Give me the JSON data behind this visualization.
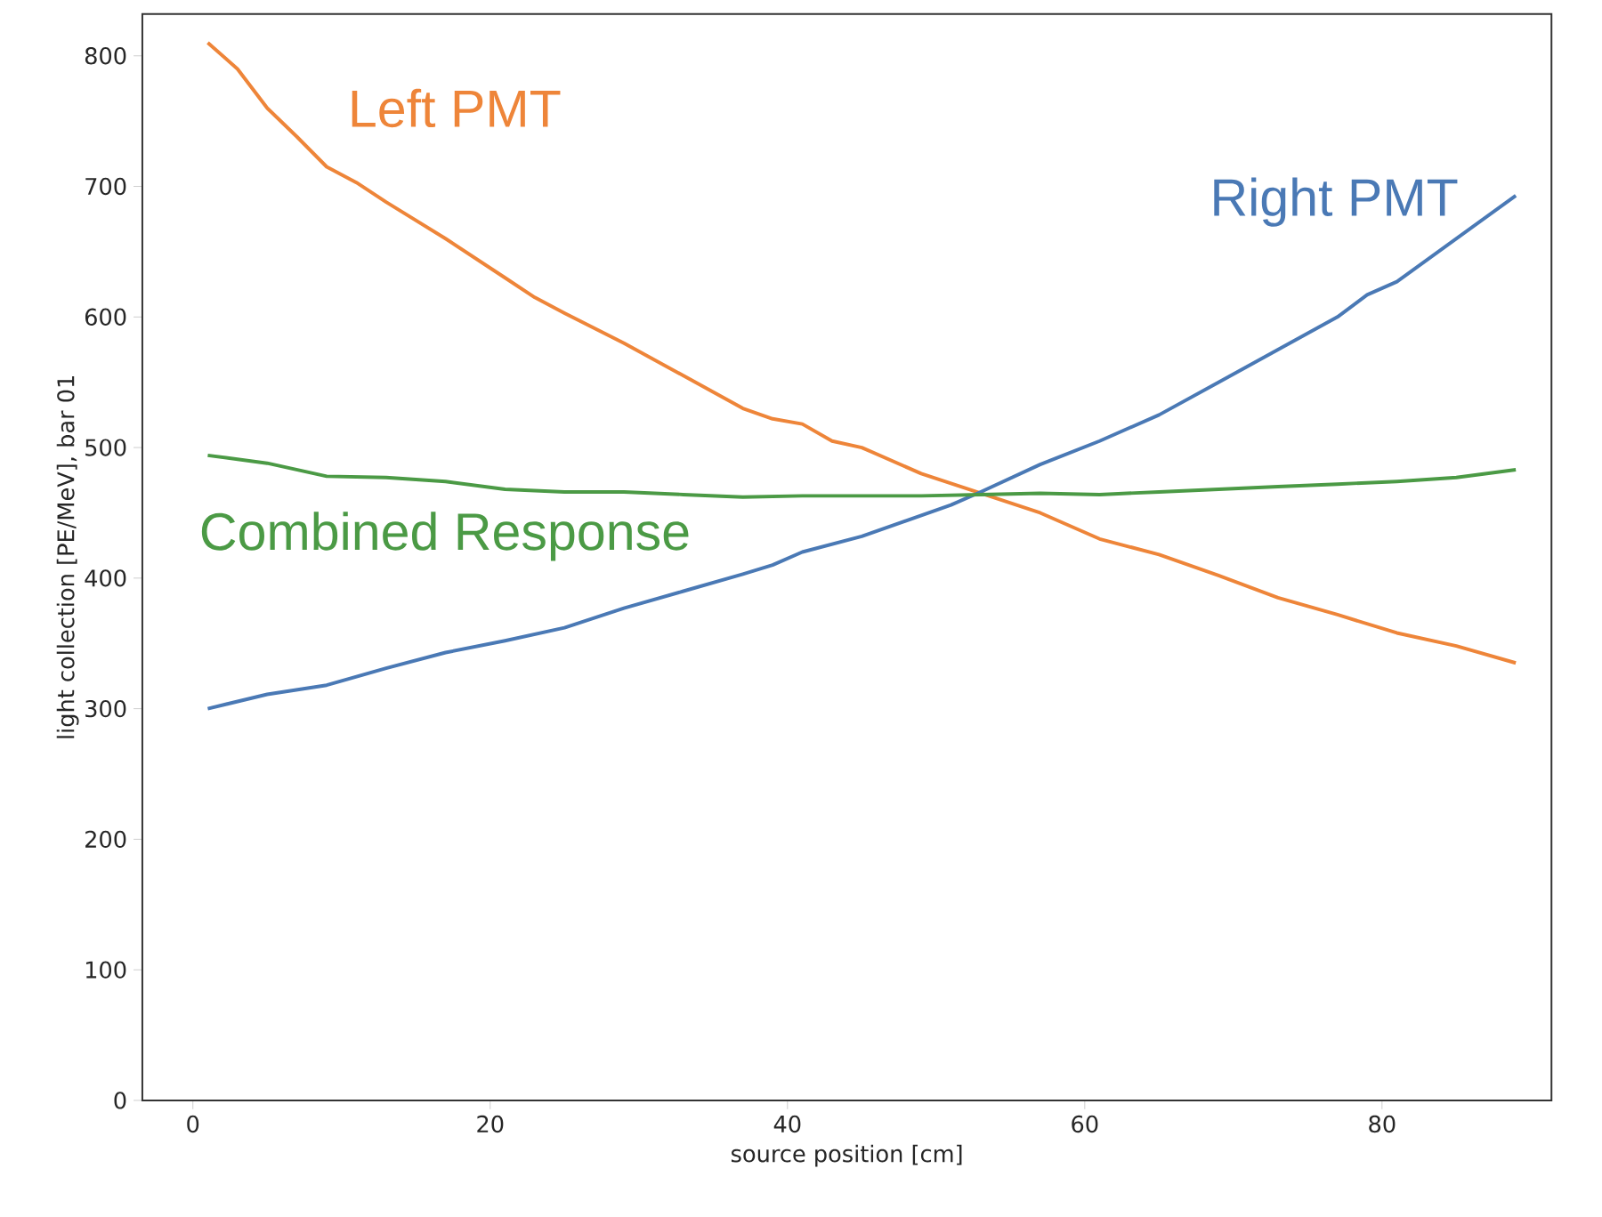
{
  "chart_data": {
    "type": "line",
    "xlabel": "source position [cm]",
    "ylabel": "light collection [PE/MeV], bar 01",
    "xlim": [
      -3.4,
      91.4
    ],
    "ylim": [
      0,
      832
    ],
    "xticks": [
      0,
      20,
      40,
      60,
      80
    ],
    "yticks": [
      0,
      100,
      200,
      300,
      400,
      500,
      600,
      700,
      800
    ],
    "grid": false,
    "series": [
      {
        "name": "Left PMT",
        "color": "#ee8539",
        "x": [
          1,
          3,
          5,
          7,
          9,
          11,
          13,
          17,
          21,
          23,
          25,
          29,
          33,
          37,
          39,
          41,
          43,
          45,
          49,
          53,
          57,
          61,
          65,
          69,
          73,
          77,
          81,
          85,
          89
        ],
        "values": [
          810,
          790,
          760,
          738,
          715,
          703,
          688,
          660,
          630,
          615,
          603,
          580,
          555,
          530,
          522,
          518,
          505,
          500,
          480,
          465,
          450,
          430,
          418,
          402,
          385,
          372,
          358,
          348,
          335
        ]
      },
      {
        "name": "Right PMT",
        "color": "#4a79b5",
        "x": [
          1,
          5,
          9,
          13,
          17,
          21,
          25,
          29,
          33,
          37,
          39,
          41,
          45,
          49,
          51,
          53,
          57,
          61,
          65,
          69,
          73,
          77,
          79,
          81,
          85,
          89
        ],
        "values": [
          300,
          311,
          318,
          331,
          343,
          352,
          362,
          377,
          390,
          403,
          410,
          420,
          432,
          448,
          456,
          466,
          487,
          505,
          525,
          550,
          575,
          600,
          617,
          627,
          660,
          693
        ]
      },
      {
        "name": "Combined Response",
        "color": "#4b9a45",
        "x": [
          1,
          5,
          9,
          13,
          17,
          21,
          25,
          29,
          33,
          37,
          41,
          45,
          49,
          53,
          57,
          61,
          65,
          69,
          73,
          77,
          81,
          85,
          89
        ],
        "values": [
          494,
          488,
          478,
          477,
          474,
          468,
          466,
          466,
          464,
          462,
          463,
          463,
          463,
          464,
          465,
          464,
          466,
          468,
          470,
          472,
          474,
          477,
          483
        ]
      }
    ]
  }
}
